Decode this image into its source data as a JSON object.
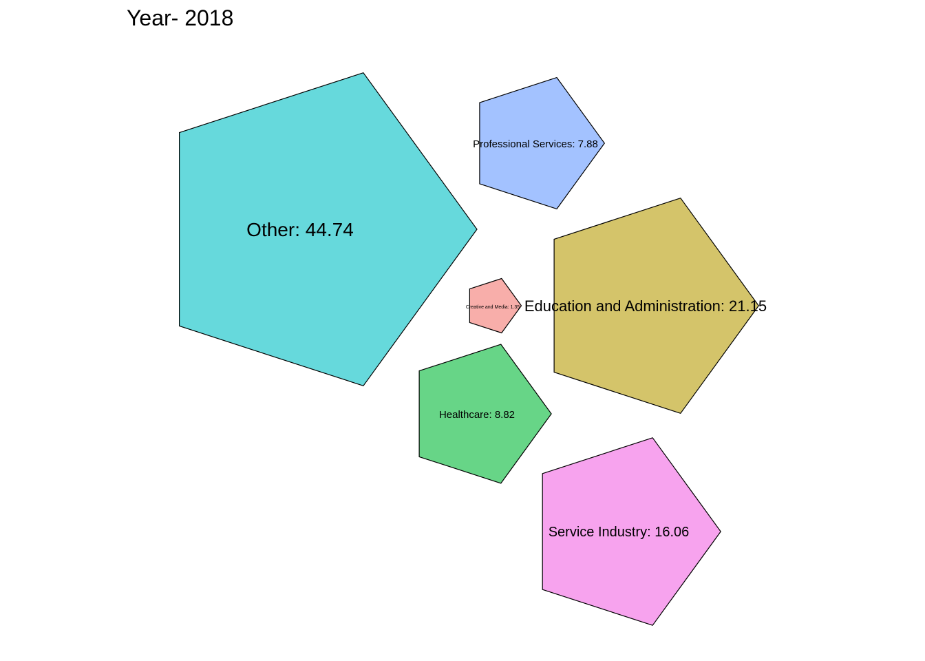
{
  "chart_data": {
    "type": "bubble-pentagon",
    "title": "Year- 2018",
    "categories": [
      "Other",
      "Professional Services",
      "Education and Administration",
      "Creative and Media",
      "Healthcare",
      "Service Industry"
    ],
    "values": [
      44.74,
      7.88,
      21.15,
      1.35,
      8.82,
      16.06
    ],
    "labels": [
      "Other: 44.74",
      "Professional Services: 7.88",
      "Education and Administration: 21.15",
      "Creative and Media: 1.35",
      "Healthcare: 8.82",
      "Service Industry: 16.06"
    ],
    "colors": [
      "#66D9DC",
      "#A3C2FF",
      "#D4C46A",
      "#F8AEAA",
      "#67D587",
      "#F7A3EE"
    ],
    "legend": "none",
    "grid": false
  }
}
